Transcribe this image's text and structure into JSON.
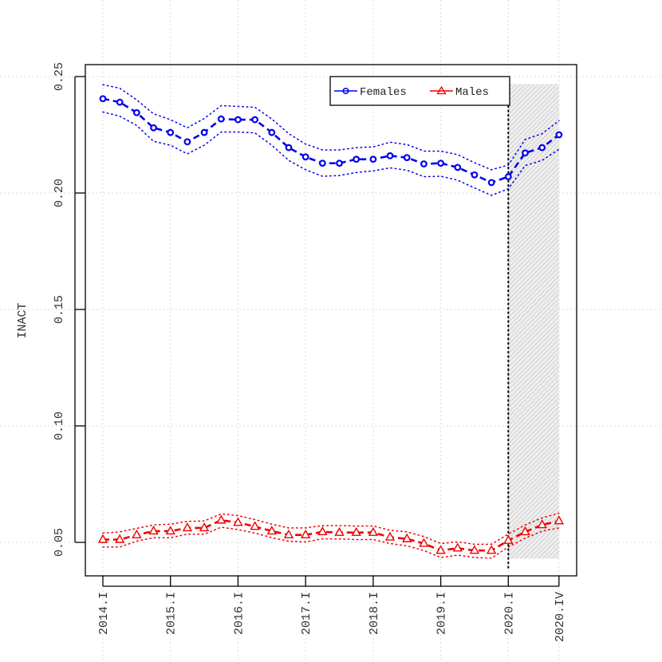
{
  "chart_data": {
    "type": "line",
    "title": "",
    "xlabel": "",
    "ylabel": "INACT",
    "ylim": [
      0.034,
      0.254
    ],
    "y_ticks": [
      "0.05",
      "0.10",
      "0.15",
      "0.20",
      "0.25"
    ],
    "x_ticks": [
      "2014.I",
      "2015.I",
      "2016.I",
      "2017.I",
      "2018.I",
      "2019.I",
      "2020.I",
      "2020.IV"
    ],
    "x_tick_index": [
      0,
      4,
      8,
      12,
      16,
      20,
      24,
      27
    ],
    "forecast_start_index": 24,
    "grid": true,
    "legend_position": "top-right",
    "series": [
      {
        "name": "Females",
        "color": "#0000ee",
        "marker": "circle",
        "values": [
          0.2405,
          0.239,
          0.2345,
          0.228,
          0.226,
          0.222,
          0.226,
          0.2318,
          0.2315,
          0.2315,
          0.226,
          0.2195,
          0.2155,
          0.2128,
          0.2128,
          0.2145,
          0.2145,
          0.216,
          0.2152,
          0.2125,
          0.2128,
          0.211,
          0.2078,
          0.2045,
          0.207,
          0.2172,
          0.2195,
          0.225
        ],
        "upper": [
          0.2465,
          0.245,
          0.24,
          0.234,
          0.2315,
          0.228,
          0.232,
          0.2375,
          0.2372,
          0.2368,
          0.2318,
          0.2255,
          0.221,
          0.2185,
          0.2185,
          0.2195,
          0.2198,
          0.2218,
          0.2208,
          0.218,
          0.218,
          0.2165,
          0.213,
          0.21,
          0.212,
          0.223,
          0.2255,
          0.231
        ],
        "lower": [
          0.2348,
          0.233,
          0.229,
          0.2222,
          0.2205,
          0.2168,
          0.2205,
          0.2262,
          0.2262,
          0.2258,
          0.2205,
          0.214,
          0.21,
          0.2072,
          0.2075,
          0.2088,
          0.2095,
          0.2108,
          0.2098,
          0.207,
          0.2072,
          0.2055,
          0.2022,
          0.199,
          0.2018,
          0.2118,
          0.214,
          0.2188
        ]
      },
      {
        "name": "Males",
        "color": "#ee0000",
        "marker": "triangle",
        "values": [
          0.0512,
          0.0512,
          0.0532,
          0.0548,
          0.0548,
          0.0562,
          0.0562,
          0.0595,
          0.0585,
          0.0568,
          0.0548,
          0.0532,
          0.0532,
          0.0545,
          0.0542,
          0.0542,
          0.0542,
          0.0522,
          0.0515,
          0.0495,
          0.0465,
          0.0475,
          0.0465,
          0.0465,
          0.0508,
          0.0545,
          0.0575,
          0.0592
        ],
        "upper": [
          0.054,
          0.0545,
          0.056,
          0.0575,
          0.0578,
          0.059,
          0.0592,
          0.0622,
          0.0615,
          0.0598,
          0.0578,
          0.0562,
          0.0562,
          0.0572,
          0.0572,
          0.057,
          0.057,
          0.0552,
          0.0545,
          0.0525,
          0.0495,
          0.0502,
          0.0492,
          0.0492,
          0.0535,
          0.0575,
          0.0605,
          0.0625
        ],
        "lower": [
          0.048,
          0.048,
          0.0505,
          0.052,
          0.052,
          0.0535,
          0.0535,
          0.0565,
          0.0555,
          0.054,
          0.052,
          0.0505,
          0.0502,
          0.0515,
          0.0515,
          0.0512,
          0.0512,
          0.0495,
          0.0485,
          0.0465,
          0.0435,
          0.0445,
          0.0435,
          0.0432,
          0.048,
          0.0518,
          0.0548,
          0.0562
        ]
      }
    ]
  }
}
